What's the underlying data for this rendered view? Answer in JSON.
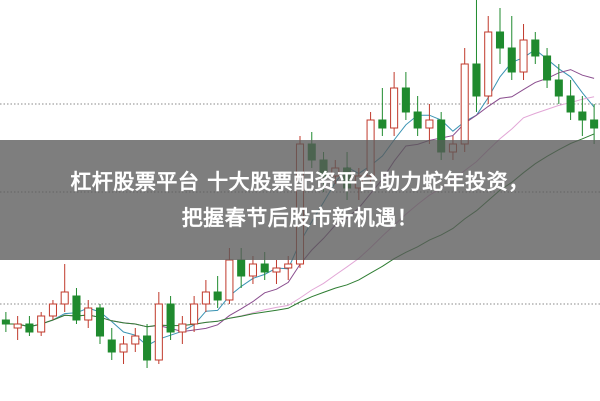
{
  "headline": {
    "line1": "杠杆股票平台 十大股票配资平台助力蛇年投资，",
    "line2": "把握春节后股市新机遇！"
  },
  "colors": {
    "up": "#c0392b",
    "down": "#1f8a2e",
    "ma5": "#3a93b3",
    "ma10": "#8a4d8e",
    "ma20": "#e2a6d6",
    "ma30": "#2e7d32",
    "gridline": "#888888",
    "overlay": "#5a5a5a"
  },
  "chart_data": {
    "type": "candlestick",
    "ylim": [
      0,
      100
    ],
    "grid": "dotted horizontal",
    "ohlc": [
      [
        20,
        22,
        17,
        19
      ],
      [
        18,
        21,
        15,
        19
      ],
      [
        19,
        21,
        16,
        17
      ],
      [
        17,
        22,
        16,
        21
      ],
      [
        21,
        25,
        20,
        24
      ],
      [
        24,
        34,
        22,
        27
      ],
      [
        26,
        28,
        19,
        20
      ],
      [
        20,
        25,
        18,
        23
      ],
      [
        23,
        24,
        14,
        16
      ],
      [
        15,
        18,
        10,
        12
      ],
      [
        12,
        16,
        9,
        14
      ],
      [
        14,
        18,
        12,
        16
      ],
      [
        16,
        19,
        8,
        10
      ],
      [
        10,
        27,
        9,
        24
      ],
      [
        24,
        26,
        15,
        17
      ],
      [
        17,
        21,
        14,
        19
      ],
      [
        19,
        26,
        17,
        24
      ],
      [
        24,
        30,
        22,
        27
      ],
      [
        27,
        31,
        23,
        25
      ],
      [
        25,
        38,
        24,
        35
      ],
      [
        35,
        38,
        28,
        31
      ],
      [
        31,
        36,
        29,
        34
      ],
      [
        34,
        37,
        30,
        32
      ],
      [
        32,
        35,
        29,
        33
      ],
      [
        33,
        36,
        30,
        34
      ],
      [
        34,
        66,
        33,
        64
      ],
      [
        64,
        67,
        58,
        60
      ],
      [
        60,
        62,
        52,
        56
      ],
      [
        56,
        60,
        54,
        58
      ],
      [
        58,
        62,
        50,
        53
      ],
      [
        53,
        58,
        50,
        56
      ],
      [
        56,
        72,
        54,
        70
      ],
      [
        70,
        78,
        66,
        68
      ],
      [
        68,
        82,
        66,
        78
      ],
      [
        78,
        82,
        70,
        72
      ],
      [
        72,
        76,
        66,
        68
      ],
      [
        68,
        74,
        64,
        70
      ],
      [
        70,
        72,
        60,
        62
      ],
      [
        62,
        66,
        60,
        64
      ],
      [
        64,
        88,
        62,
        84
      ],
      [
        84,
        100,
        72,
        76
      ],
      [
        76,
        96,
        74,
        92
      ],
      [
        92,
        98,
        84,
        88
      ],
      [
        88,
        96,
        80,
        82
      ],
      [
        82,
        94,
        80,
        90
      ],
      [
        90,
        92,
        84,
        86
      ],
      [
        86,
        88,
        78,
        80
      ],
      [
        80,
        84,
        74,
        76
      ],
      [
        76,
        80,
        70,
        72
      ],
      [
        72,
        76,
        66,
        70
      ],
      [
        70,
        74,
        64,
        68
      ]
    ],
    "moving_averages": [
      5,
      10,
      20,
      30
    ],
    "gridlines": [
      24,
      52,
      74
    ]
  }
}
